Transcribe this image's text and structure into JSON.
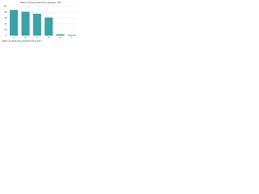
{
  "chart_data": {
    "type": "bar",
    "title": "Share of respondents by category (%)",
    "categories": [
      "A",
      "B",
      "C",
      "D",
      "E",
      "F"
    ],
    "values": [
      88,
      82,
      75,
      62,
      4,
      2
    ],
    "color": "#3aa3a8",
    "ylim": [
      0,
      100
    ],
    "yticks": [
      0,
      20,
      40,
      60,
      80,
      100
    ],
    "grid": true,
    "note": "Base: all adults who answered the survey"
  }
}
